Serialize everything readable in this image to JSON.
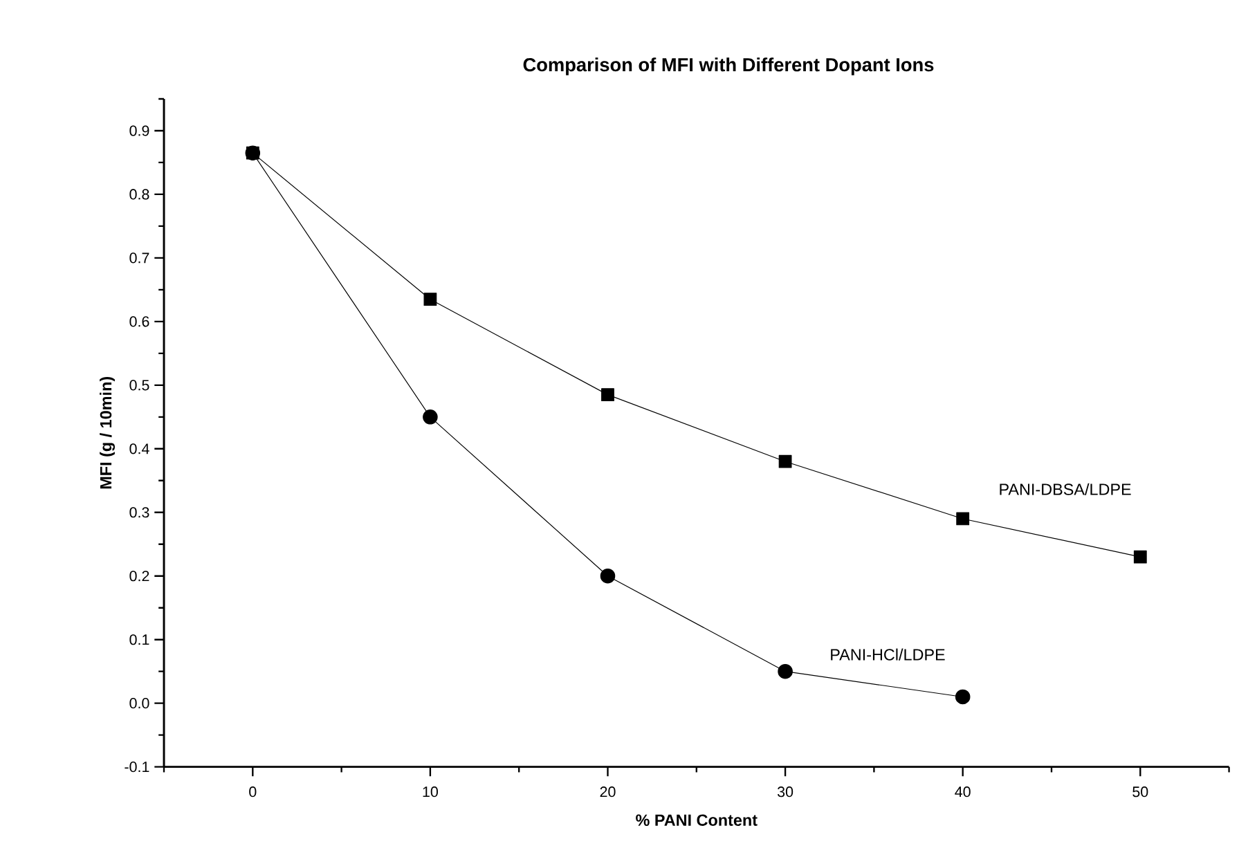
{
  "chart_data": {
    "type": "line",
    "title": "Comparison of MFI with Different Dopant Ions",
    "xlabel": "% PANI Content",
    "ylabel": "MFI (g / 10min)",
    "x": [
      0,
      10,
      20,
      30,
      40,
      50
    ],
    "series": [
      {
        "name": "PANI-DBSA/LDPE",
        "color": "#000000",
        "marker": "square",
        "values": [
          0.865,
          0.635,
          0.485,
          0.38,
          0.29,
          0.23
        ]
      },
      {
        "name": "PANI-HCl/LDPE",
        "color": "#000000",
        "marker": "circle",
        "values": [
          0.865,
          0.45,
          0.2,
          0.05,
          0.01,
          null
        ]
      }
    ],
    "xlim": [
      -5,
      55
    ],
    "ylim": [
      -0.1,
      0.95
    ],
    "xticks": [
      {
        "value": -5,
        "label": null
      },
      0,
      {
        "value": 5,
        "label": null
      },
      10,
      {
        "value": 15,
        "label": null
      },
      20,
      {
        "value": 25,
        "label": null
      },
      30,
      {
        "value": 35,
        "label": null
      },
      40,
      {
        "value": 45,
        "label": null
      },
      50,
      {
        "value": 55,
        "label": null
      }
    ],
    "yticks": [
      {
        "value": -0.1,
        "label": "-0.1"
      },
      {
        "value": -0.05,
        "label": null
      },
      {
        "value": 0,
        "label": "0.0"
      },
      {
        "value": 0.05,
        "label": null
      },
      0.1,
      {
        "value": 0.15,
        "label": null
      },
      0.2,
      {
        "value": 0.25,
        "label": null
      },
      0.3,
      {
        "value": 0.35,
        "label": null
      },
      0.4,
      {
        "value": 0.45,
        "label": null
      },
      0.5,
      {
        "value": 0.55,
        "label": null
      },
      0.6,
      {
        "value": 0.65,
        "label": null
      },
      0.7,
      {
        "value": 0.75,
        "label": null
      },
      0.8,
      {
        "value": 0.85,
        "label": null
      },
      0.9,
      {
        "value": 0.95,
        "label": null
      }
    ],
    "grid": false,
    "line_style": "solid"
  }
}
